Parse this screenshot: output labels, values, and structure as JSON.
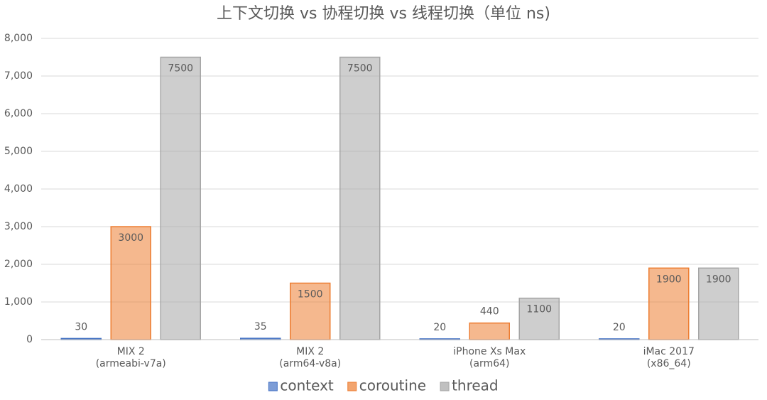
{
  "chart_data": {
    "type": "bar",
    "title": "上下文切换 vs 协程切换 vs 线程切换（单位 ns)",
    "categories": [
      [
        "MIX 2",
        "(armeabi-v7a)"
      ],
      [
        "MIX 2",
        "(arm64-v8a)"
      ],
      [
        "iPhone Xs Max",
        "(arm64)"
      ],
      [
        "iMac 2017",
        "(x86_64)"
      ]
    ],
    "series": [
      {
        "name": "context",
        "color": "#4472c4",
        "values": [
          30,
          35,
          20,
          20
        ]
      },
      {
        "name": "coroutine",
        "color": "#ed7d31",
        "values": [
          3000,
          1500,
          440,
          1900
        ]
      },
      {
        "name": "thread",
        "color": "#a5a5a5",
        "values": [
          7500,
          7500,
          1100,
          1900
        ]
      }
    ],
    "ylim": [
      0,
      8000
    ],
    "yticks": [
      0,
      {
        "value": 1000,
        "label": "1,000"
      },
      {
        "value": 2000,
        "label": "2,000"
      },
      {
        "value": 3000,
        "label": "3,000"
      },
      {
        "value": 4000,
        "label": "4,000"
      },
      {
        "value": 5000,
        "label": "5,000"
      },
      {
        "value": 6000,
        "label": "6,000"
      },
      {
        "value": 7000,
        "label": "7,000"
      },
      {
        "value": 8000,
        "label": "8,000"
      }
    ],
    "grid": true,
    "legend": "bottom"
  }
}
